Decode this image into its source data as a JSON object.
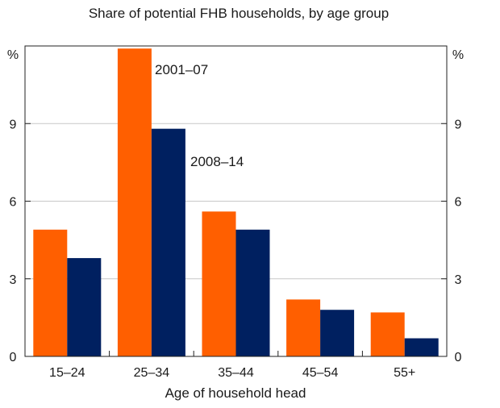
{
  "chart_data": {
    "type": "bar",
    "title": "Share of potential FHB households, by age group",
    "xlabel": "Age of household head",
    "ylabel_left": "%",
    "ylabel_right": "%",
    "categories": [
      "15–24",
      "25–34",
      "35–44",
      "45–54",
      "55+"
    ],
    "series": [
      {
        "name": "2001–07",
        "color": "#ff5f00",
        "values": [
          4.9,
          11.9,
          5.6,
          2.2,
          1.7
        ]
      },
      {
        "name": "2008–14",
        "color": "#002060",
        "values": [
          3.8,
          8.8,
          4.9,
          1.8,
          0.7
        ]
      }
    ],
    "ylim": [
      0,
      12
    ],
    "yticks": [
      "0",
      "3",
      "6",
      "9"
    ],
    "grid": true,
    "legend": "inline labels"
  }
}
